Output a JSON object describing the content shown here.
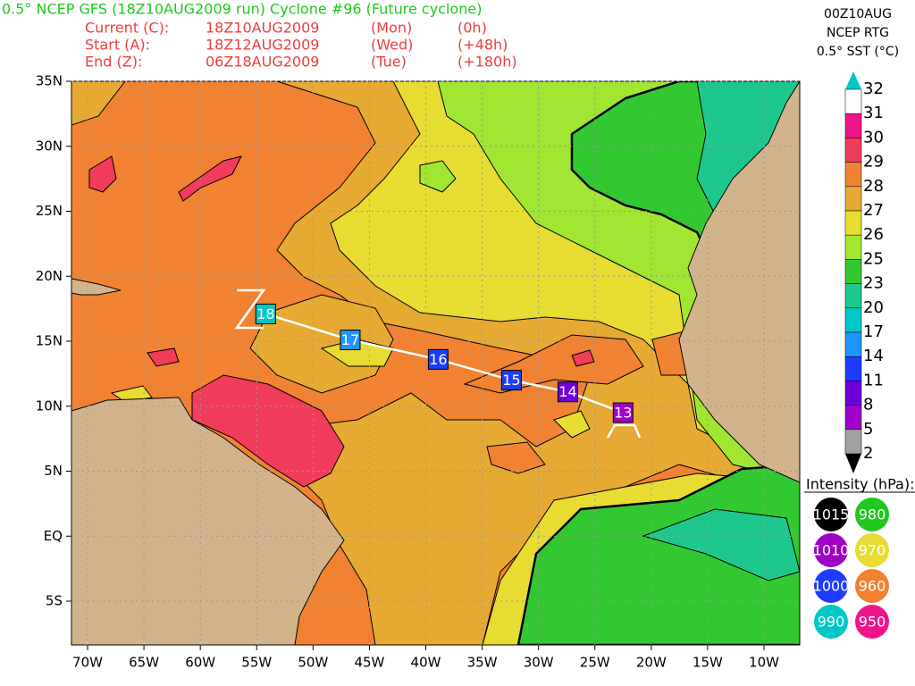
{
  "header": {
    "title": "0.5° NCEP GFS (18Z10AUG2009 run) Cyclone #96 (Future cyclone)",
    "rows": [
      {
        "label": "Current (C):",
        "date": "18Z10AUG2009",
        "day": "(Mon)",
        "offset": "(0h)"
      },
      {
        "label": "Start (A):",
        "date": "18Z12AUG2009",
        "day": "(Wed)",
        "offset": "(+48h)"
      },
      {
        "label": "End (Z):",
        "date": "06Z18AUG2009",
        "day": "(Tue)",
        "offset": "(+180h)"
      }
    ]
  },
  "colorbar": {
    "lines": [
      "00Z10AUG",
      "NCEP RTG",
      "0.5° SST (°C)"
    ],
    "levels": [
      32,
      31,
      30,
      29,
      28,
      27,
      26,
      25,
      23,
      20,
      17,
      14,
      11,
      8,
      5,
      2
    ],
    "colors": [
      "#ffffff",
      "#f0148c",
      "#f03c5a",
      "#f08232",
      "#e6aa32",
      "#e6dc32",
      "#a0e632",
      "#32c832",
      "#1ec88c",
      "#00c8c8",
      "#1e96ff",
      "#1e3cff",
      "#6e00dc",
      "#a000c8",
      "#a0a0a0"
    ]
  },
  "intensity": {
    "title": "Intensity (hPa):",
    "items": [
      {
        "value": 1015,
        "color": "#000000"
      },
      {
        "value": 980,
        "color": "#1ec81e"
      },
      {
        "value": 1010,
        "color": "#a000c8"
      },
      {
        "value": 970,
        "color": "#e6dc32"
      },
      {
        "value": 1000,
        "color": "#1e3cff"
      },
      {
        "value": 960,
        "color": "#f08232"
      },
      {
        "value": 990,
        "color": "#00c8c8"
      },
      {
        "value": 950,
        "color": "#f0148c"
      }
    ]
  },
  "map": {
    "xticks": [
      {
        "value": -70,
        "label": "70W"
      },
      {
        "value": -65,
        "label": "65W"
      },
      {
        "value": -60,
        "label": "60W"
      },
      {
        "value": -55,
        "label": "55W"
      },
      {
        "value": -50,
        "label": "50W"
      },
      {
        "value": -45,
        "label": "45W"
      },
      {
        "value": -40,
        "label": "40W"
      },
      {
        "value": -35,
        "label": "35W"
      },
      {
        "value": -30,
        "label": "30W"
      },
      {
        "value": -25,
        "label": "25W"
      },
      {
        "value": -20,
        "label": "20W"
      },
      {
        "value": -15,
        "label": "15W"
      },
      {
        "value": -10,
        "label": "10W"
      }
    ],
    "yticks": [
      {
        "value": 35,
        "label": "35N"
      },
      {
        "value": 30,
        "label": "30N"
      },
      {
        "value": 25,
        "label": "25N"
      },
      {
        "value": 20,
        "label": "20N"
      },
      {
        "value": 15,
        "label": "15N"
      },
      {
        "value": 10,
        "label": "10N"
      },
      {
        "value": 5,
        "label": "5N"
      },
      {
        "value": 0,
        "label": "EQ"
      },
      {
        "value": -5,
        "label": "5S"
      }
    ],
    "track": [
      {
        "label": "18",
        "lon": -54.2,
        "lat": 17.1,
        "color": "#00c8c8"
      },
      {
        "label": "17",
        "lon": -46.7,
        "lat": 15.1,
        "color": "#1e96ff"
      },
      {
        "label": "16",
        "lon": -38.9,
        "lat": 13.6,
        "color": "#1e3cff"
      },
      {
        "label": "15",
        "lon": -32.4,
        "lat": 12.0,
        "color": "#1e3cff"
      },
      {
        "label": "14",
        "lon": -27.4,
        "lat": 11.1,
        "color": "#6e00dc"
      },
      {
        "label": "13",
        "lon": -22.5,
        "lat": 9.5,
        "color": "#a000c8"
      }
    ]
  }
}
